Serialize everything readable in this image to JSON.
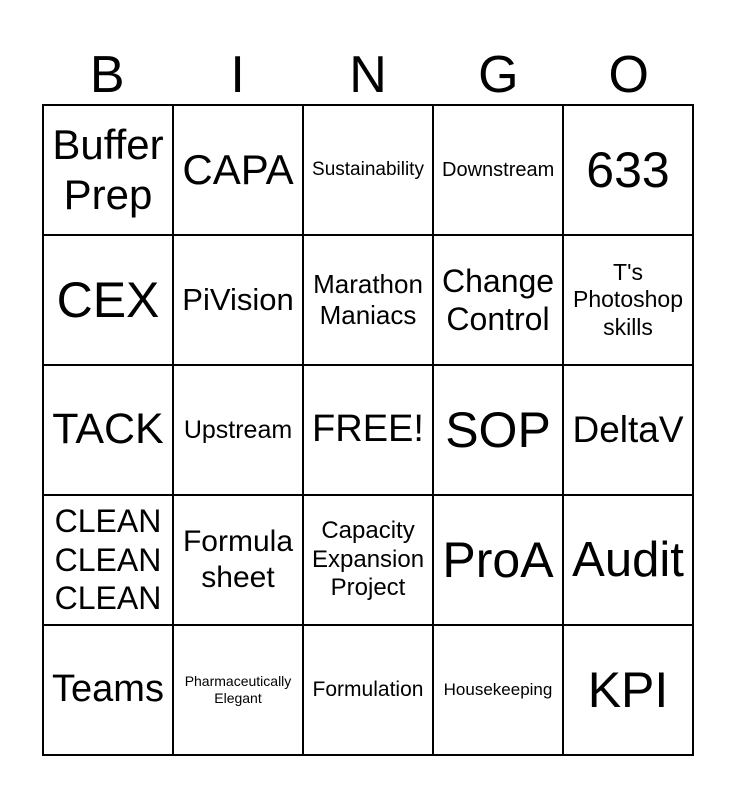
{
  "title": {
    "letters": [
      "B",
      "I",
      "N",
      "G",
      "O"
    ]
  },
  "board": {
    "columns": 5,
    "rows": 5,
    "cells": [
      {
        "label": "Buffer Prep"
      },
      {
        "label": "CAPA"
      },
      {
        "label": "Sustainability"
      },
      {
        "label": "Downstream"
      },
      {
        "label": "633"
      },
      {
        "label": "CEX"
      },
      {
        "label": "PiVision"
      },
      {
        "label": "Marathon Maniacs"
      },
      {
        "label": "Change Control"
      },
      {
        "label": "T's Photoshop skills"
      },
      {
        "label": "TACK"
      },
      {
        "label": "Upstream"
      },
      {
        "label": "FREE!",
        "free_space": true
      },
      {
        "label": "SOP"
      },
      {
        "label": "DeltaV"
      },
      {
        "label": "CLEAN CLEAN CLEAN"
      },
      {
        "label": "Formula sheet"
      },
      {
        "label": "Capacity Expansion Project"
      },
      {
        "label": "ProA"
      },
      {
        "label": "Audit"
      },
      {
        "label": "Teams"
      },
      {
        "label": "Pharmaceutically Elegant"
      },
      {
        "label": "Formulation"
      },
      {
        "label": "Housekeeping"
      },
      {
        "label": "KPI"
      }
    ]
  },
  "colors": {
    "background": "#ffffff",
    "grid_line": "#000000",
    "text": "#000000"
  }
}
